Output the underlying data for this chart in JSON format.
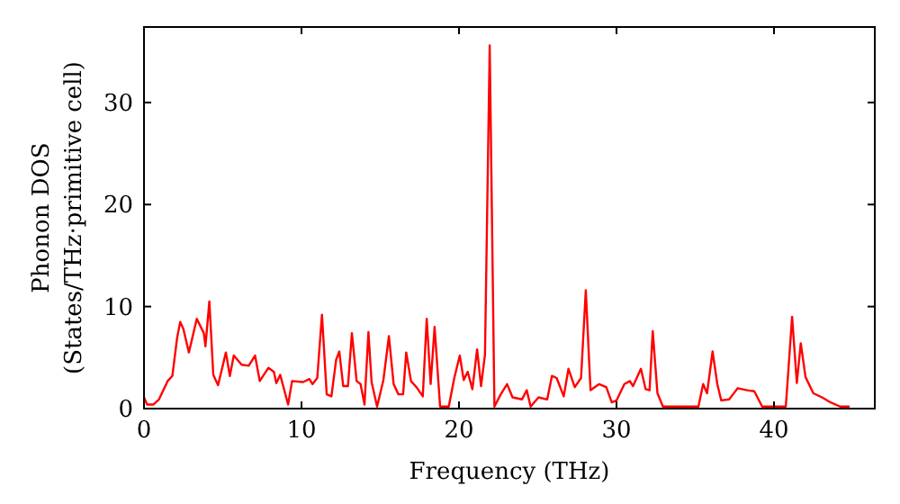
{
  "chart_data": {
    "type": "line",
    "xlabel": "Frequency (THz)",
    "ylabel": "Phonon DOS\n(States/THz·primitive cell)",
    "xlim": [
      0,
      46.4
    ],
    "ylim": [
      0,
      37.4
    ],
    "xticks": [
      0,
      10,
      20,
      30,
      40
    ],
    "yticks": [
      0,
      10,
      20,
      30
    ],
    "grid": false,
    "marker": "none",
    "line_style": "solid",
    "series": [
      {
        "color": "#ff0000",
        "x": [
          0,
          0.2,
          0.6,
          0.95,
          1.5,
          1.8,
          2.1,
          2.3,
          2.5,
          2.85,
          3.35,
          3.8,
          3.9,
          4.15,
          4.4,
          4.7,
          5.2,
          5.45,
          5.7,
          6.2,
          6.65,
          7.05,
          7.35,
          7.9,
          8.25,
          8.4,
          8.65,
          9.15,
          9.4,
          10.1,
          10.5,
          10.7,
          11.0,
          11.3,
          11.6,
          11.9,
          12.2,
          12.4,
          12.65,
          12.95,
          13.2,
          13.5,
          13.75,
          14.0,
          14.25,
          14.45,
          14.8,
          15.2,
          15.55,
          15.85,
          16.15,
          16.45,
          16.65,
          16.95,
          17.3,
          17.7,
          17.95,
          18.2,
          18.45,
          18.8,
          19.35,
          19.7,
          20.05,
          20.3,
          20.55,
          20.85,
          21.15,
          21.4,
          21.65,
          21.95,
          22.25,
          22.65,
          23.05,
          23.4,
          24.0,
          24.3,
          24.55,
          25.05,
          25.6,
          25.9,
          26.2,
          26.65,
          26.95,
          27.35,
          27.75,
          28.05,
          28.35,
          28.9,
          29.35,
          29.7,
          30.0,
          30.5,
          30.85,
          31.05,
          31.55,
          31.85,
          32.1,
          32.3,
          32.6,
          32.95,
          35.2,
          35.5,
          35.75,
          36.1,
          36.4,
          36.65,
          37.15,
          37.4,
          37.7,
          38.3,
          38.75,
          39.25,
          40.75,
          41.15,
          41.45,
          41.7,
          42.0,
          42.5,
          43.05,
          43.6,
          44.2,
          44.8
        ],
        "values": [
          1.1,
          0.4,
          0.4,
          0.9,
          2.7,
          3.2,
          6.9,
          8.5,
          7.8,
          5.5,
          8.8,
          7.4,
          6.1,
          10.5,
          3.3,
          2.3,
          5.5,
          3.2,
          5.2,
          4.3,
          4.2,
          5.2,
          2.7,
          4.0,
          3.6,
          2.5,
          3.3,
          0.4,
          2.7,
          2.6,
          2.9,
          2.4,
          3.0,
          9.2,
          1.4,
          1.2,
          4.8,
          5.6,
          2.2,
          2.2,
          7.4,
          2.7,
          2.4,
          0.4,
          7.5,
          2.6,
          0.2,
          2.8,
          7.1,
          2.4,
          1.4,
          1.4,
          5.5,
          2.7,
          2.1,
          1.2,
          8.8,
          2.4,
          8.0,
          0.2,
          0.2,
          3.0,
          5.2,
          2.8,
          3.6,
          1.9,
          5.8,
          2.2,
          5.3,
          35.6,
          0.2,
          1.4,
          2.4,
          1.1,
          0.9,
          1.8,
          0.2,
          1.1,
          0.9,
          3.2,
          3.0,
          1.2,
          3.9,
          2.1,
          3.0,
          11.6,
          1.8,
          2.4,
          2.1,
          0.6,
          0.8,
          2.4,
          2.7,
          2.2,
          3.9,
          1.9,
          1.8,
          7.6,
          1.5,
          0.2,
          0.2,
          2.4,
          1.5,
          5.6,
          2.4,
          0.8,
          0.9,
          1.4,
          2.0,
          1.8,
          1.7,
          0.2,
          0.2,
          9.0,
          2.5,
          6.4,
          3.1,
          1.5,
          1.1,
          0.6,
          0.2,
          0.2
        ]
      }
    ]
  }
}
